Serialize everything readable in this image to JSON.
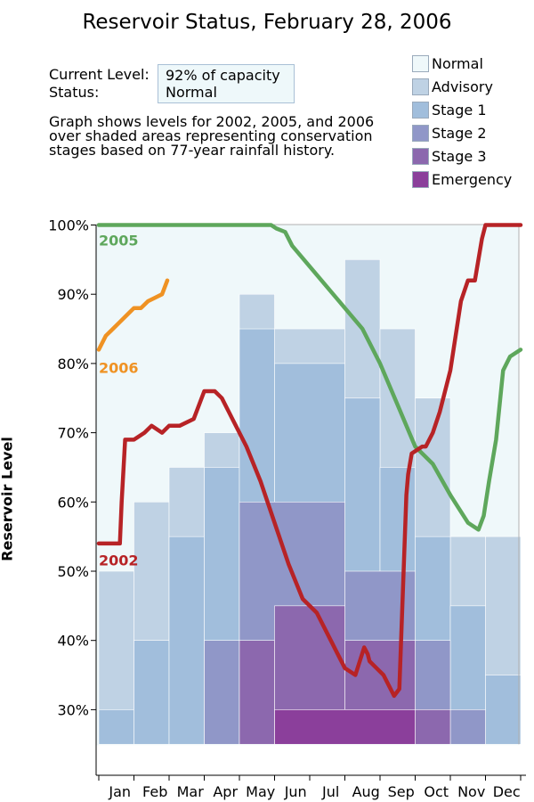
{
  "page": {
    "title": "Reservoir Status, February 28, 2006",
    "current_level_label": "Current Level:",
    "current_level_value": "92% of capacity",
    "status_label": "Status:",
    "status_value": "Normal",
    "note_lines": [
      "Graph shows levels for 2002, 2005, and 2006",
      "over shaded areas representing conservation",
      "stages based on 77-year rainfall history."
    ]
  },
  "legend": [
    {
      "label": "Normal",
      "color": "#eff8fa"
    },
    {
      "label": "Advisory",
      "color": "#bfd2e4"
    },
    {
      "label": "Stage 1",
      "color": "#a1bedc"
    },
    {
      "label": "Stage 2",
      "color": "#9097c8"
    },
    {
      "label": "Stage 3",
      "color": "#8c68ae"
    },
    {
      "label": "Emergency",
      "color": "#8b3f9b"
    }
  ],
  "chart_data": {
    "type": "line",
    "ylabel": "Reservoir Level",
    "xlabel": "",
    "ylim": [
      20,
      100
    ],
    "xlim": [
      0,
      12
    ],
    "x_unit": "month",
    "y_ticks": [
      30,
      40,
      50,
      60,
      70,
      80,
      90,
      100
    ],
    "y_tick_labels": [
      "30%",
      "40%",
      "50%",
      "60%",
      "70%",
      "80%",
      "90%",
      "100%"
    ],
    "x_tick_labels": [
      "Jan",
      "Feb",
      "Mar",
      "Apr",
      "May",
      "Jun",
      "Jul",
      "Aug",
      "Sep",
      "Oct",
      "Nov",
      "Dec"
    ],
    "stages": [
      {
        "name": "Advisory",
        "color": "#bfd2e4",
        "steps": [
          [
            0,
            1,
            50
          ],
          [
            1,
            2,
            60
          ],
          [
            2,
            3,
            65
          ],
          [
            3,
            4,
            70
          ],
          [
            4,
            5,
            90
          ],
          [
            5,
            7,
            85
          ],
          [
            7,
            8,
            95
          ],
          [
            8,
            9,
            85
          ],
          [
            9,
            10,
            75
          ],
          [
            10,
            11,
            55
          ],
          [
            11,
            12,
            55
          ]
        ]
      },
      {
        "name": "Stage 1",
        "color": "#a1bedc",
        "steps": [
          [
            0,
            1,
            30
          ],
          [
            1,
            2,
            40
          ],
          [
            2,
            3,
            55
          ],
          [
            3,
            4,
            65
          ],
          [
            4,
            5,
            85
          ],
          [
            5,
            7,
            80
          ],
          [
            7,
            8,
            75
          ],
          [
            8,
            9,
            65
          ],
          [
            9,
            10,
            55
          ],
          [
            10,
            11,
            45
          ],
          [
            11,
            12,
            35
          ]
        ]
      },
      {
        "name": "Stage 2",
        "color": "#9097c8",
        "steps": [
          [
            3,
            4,
            40
          ],
          [
            4,
            7,
            60
          ],
          [
            7,
            9,
            50
          ],
          [
            9,
            10,
            40
          ],
          [
            10,
            11,
            30
          ]
        ]
      },
      {
        "name": "Stage 3",
        "color": "#8c68ae",
        "steps": [
          [
            4,
            5,
            40
          ],
          [
            5,
            7,
            45
          ],
          [
            7,
            9,
            40
          ],
          [
            9,
            10,
            30
          ]
        ]
      },
      {
        "name": "Emergency",
        "color": "#8b3f9b",
        "steps": [
          [
            5,
            9,
            30
          ]
        ]
      }
    ],
    "stage_floor": 25,
    "series": [
      {
        "name": "2005",
        "color": "#5ea75c",
        "x": [
          0,
          1,
          2,
          3,
          4,
          4.9,
          5.05,
          5.3,
          5.5,
          6,
          6.5,
          7,
          7.5,
          8,
          8.5,
          9,
          9.5,
          10,
          10.5,
          10.8,
          10.95,
          11.1,
          11.3,
          11.5,
          11.7,
          12
        ],
        "y": [
          100,
          100,
          100,
          100,
          100,
          100,
          99.5,
          99,
          97,
          94,
          91,
          88,
          85,
          80,
          74,
          68,
          65.5,
          61,
          57,
          56,
          58,
          63,
          69,
          79,
          81,
          82
        ]
      },
      {
        "name": "2006",
        "color": "#ef9223",
        "x": [
          0,
          0.2,
          0.4,
          0.6,
          0.8,
          1.0,
          1.2,
          1.4,
          1.6,
          1.8,
          1.95
        ],
        "y": [
          82,
          84,
          85,
          86,
          87,
          88,
          88,
          89,
          89.5,
          90,
          92
        ]
      },
      {
        "name": "2002",
        "color": "#b72326",
        "x": [
          0,
          0.6,
          0.65,
          0.75,
          0.85,
          1.0,
          1.3,
          1.5,
          1.8,
          2.0,
          2.3,
          2.7,
          3.0,
          3.3,
          3.5,
          3.8,
          4.2,
          4.6,
          5.0,
          5.4,
          5.8,
          6.2,
          6.6,
          7.0,
          7.3,
          7.55,
          7.65,
          7.7,
          7.9,
          8.1,
          8.4,
          8.55,
          8.75,
          8.8,
          8.9,
          9.2,
          9.3,
          9.5,
          9.7,
          10.0,
          10.3,
          10.5,
          10.7,
          10.9,
          11.0,
          11.3,
          12
        ],
        "y": [
          54,
          54,
          60,
          69,
          69,
          69,
          70,
          71,
          70,
          71,
          71,
          72,
          76,
          76,
          75,
          72,
          68,
          63,
          57,
          51,
          46,
          44,
          40,
          36,
          35,
          39,
          38,
          37,
          36,
          35,
          32,
          33,
          61,
          64,
          67,
          68,
          68,
          70,
          73,
          79,
          89,
          92,
          92,
          98,
          100,
          100,
          100
        ]
      }
    ],
    "series_label_y": {
      "2005": 97.8,
      "2006": 79.4,
      "2002": 51.6
    }
  }
}
